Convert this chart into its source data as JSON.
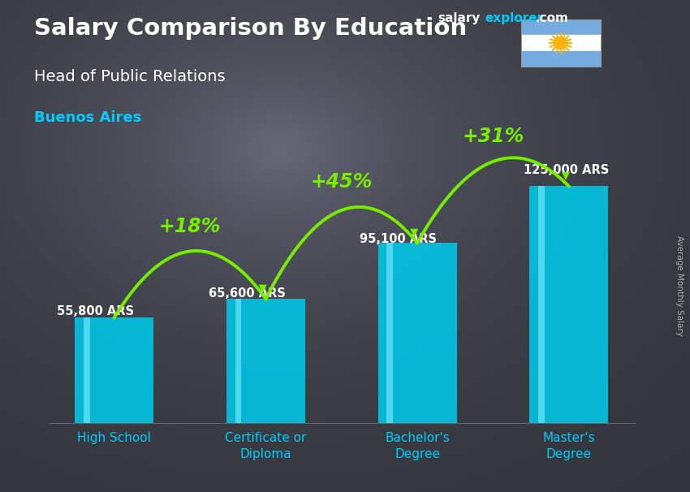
{
  "title_main": "Salary Comparison By Education",
  "title_sub": "Head of Public Relations",
  "title_city": "Buenos Aires",
  "ylabel": "Average Monthly Salary",
  "categories": [
    "High School",
    "Certificate or\nDiploma",
    "Bachelor's\nDegree",
    "Master's\nDegree"
  ],
  "values": [
    55800,
    65600,
    95100,
    125000
  ],
  "value_labels": [
    "55,800 ARS",
    "65,600 ARS",
    "95,100 ARS",
    "125,000 ARS"
  ],
  "pct_labels": [
    "+18%",
    "+45%",
    "+31%"
  ],
  "bar_color": "#00c8e8",
  "bar_edge_color": "#00a0c0",
  "text_color_white": "#ffffff",
  "text_color_cyan": "#00ccff",
  "text_color_green": "#77ee00",
  "bg_color": "#3a3a4a",
  "ylim_max": 148000,
  "bar_width": 0.52,
  "website_salary_color": "#ffffff",
  "website_explorer_color": "#00ccff",
  "flag_blue": "#74ACDF",
  "flag_white": "#FFFFFF",
  "sun_color": "#F6B40E"
}
